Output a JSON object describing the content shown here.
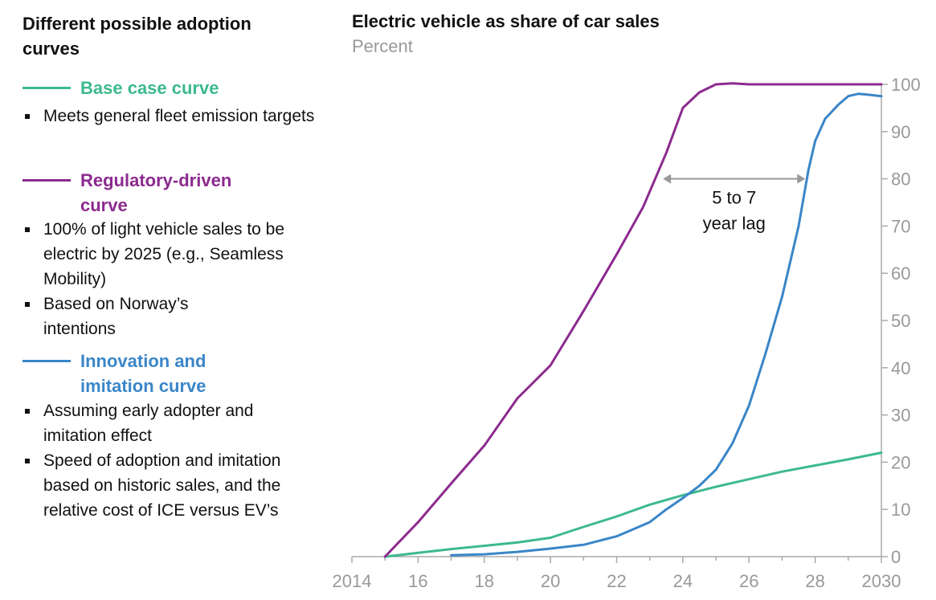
{
  "left_panel": {
    "title": "Different possible adoption curves",
    "legend": [
      {
        "name": "Base case curve",
        "color": "#3dba8c",
        "bullets": [
          "Meets general fleet emission targets"
        ]
      },
      {
        "name": "Regulatory-driven curve",
        "color": "#8c2a8f",
        "bullets": [
          "100% of light vehicle sales to be electric by 2025 (e.g., Seamless Mobility)",
          "Based on Norway’s intentions"
        ]
      },
      {
        "name": "Innovation and imitation curve",
        "color": "#3a86c8",
        "bullets": [
          "Assuming early adopter and imitation effect",
          "Speed of adoption and imitation based on historic sales, and the relative cost of ICE versus EV’s"
        ]
      }
    ]
  },
  "chart_data": {
    "type": "line",
    "title": "Electric vehicle as share of car sales",
    "subtitle": "Percent",
    "xlim": [
      2014,
      2030
    ],
    "ylim": [
      0,
      100
    ],
    "x_ticks": [
      2014,
      2016,
      2018,
      2020,
      2022,
      2024,
      2026,
      2028,
      2030
    ],
    "x_tick_labels": [
      "2014",
      "16",
      "18",
      "20",
      "22",
      "24",
      "26",
      "28",
      "2030"
    ],
    "y_ticks": [
      0,
      10,
      20,
      30,
      40,
      50,
      60,
      70,
      80,
      90,
      100
    ],
    "y_axis_side": "right",
    "grid": false,
    "series": [
      {
        "name": "Base case curve",
        "color": "#3dba8c",
        "points": [
          [
            2015,
            0
          ],
          [
            2016,
            0.8
          ],
          [
            2017,
            1.6
          ],
          [
            2018,
            2.3
          ],
          [
            2019,
            3
          ],
          [
            2020,
            4
          ],
          [
            2021,
            6.3
          ],
          [
            2022,
            8.5
          ],
          [
            2023,
            11
          ],
          [
            2024,
            13
          ],
          [
            2025,
            14.8
          ],
          [
            2026,
            16.4
          ],
          [
            2027,
            18
          ],
          [
            2028,
            19.3
          ],
          [
            2029,
            20.6
          ],
          [
            2030,
            22
          ]
        ]
      },
      {
        "name": "Regulatory-driven curve",
        "color": "#8c2a8f",
        "points": [
          [
            2015,
            0
          ],
          [
            2016,
            7.3
          ],
          [
            2017,
            15.5
          ],
          [
            2018,
            23.5
          ],
          [
            2019,
            33.5
          ],
          [
            2020,
            40.5
          ],
          [
            2021,
            52
          ],
          [
            2022,
            64
          ],
          [
            2022.8,
            74
          ],
          [
            2023.5,
            85.5
          ],
          [
            2024,
            95
          ],
          [
            2024.5,
            98.3
          ],
          [
            2025,
            100
          ],
          [
            2025.5,
            100.2
          ],
          [
            2026,
            100
          ],
          [
            2030,
            100
          ]
        ]
      },
      {
        "name": "Innovation and imitation curve",
        "color": "#3a86c8",
        "points": [
          [
            2017,
            0.3
          ],
          [
            2018,
            0.5
          ],
          [
            2019,
            1
          ],
          [
            2020,
            1.7
          ],
          [
            2021,
            2.5
          ],
          [
            2022,
            4.3
          ],
          [
            2023,
            7.3
          ],
          [
            2023.5,
            10
          ],
          [
            2024,
            12.4
          ],
          [
            2024.5,
            15
          ],
          [
            2025,
            18.4
          ],
          [
            2025.5,
            24
          ],
          [
            2026,
            32
          ],
          [
            2026.5,
            43
          ],
          [
            2027,
            55
          ],
          [
            2027.5,
            70
          ],
          [
            2027.8,
            82
          ],
          [
            2028,
            88
          ],
          [
            2028.3,
            92.7
          ],
          [
            2028.7,
            95.7
          ],
          [
            2029,
            97.5
          ],
          [
            2029.3,
            98
          ],
          [
            2029.6,
            97.8
          ],
          [
            2030,
            97.5
          ]
        ]
      }
    ],
    "annotation": {
      "text_line1": "5 to 7",
      "text_line2": "year lag",
      "x_from": 2023.4,
      "x_to": 2027.7,
      "y": 80
    }
  }
}
